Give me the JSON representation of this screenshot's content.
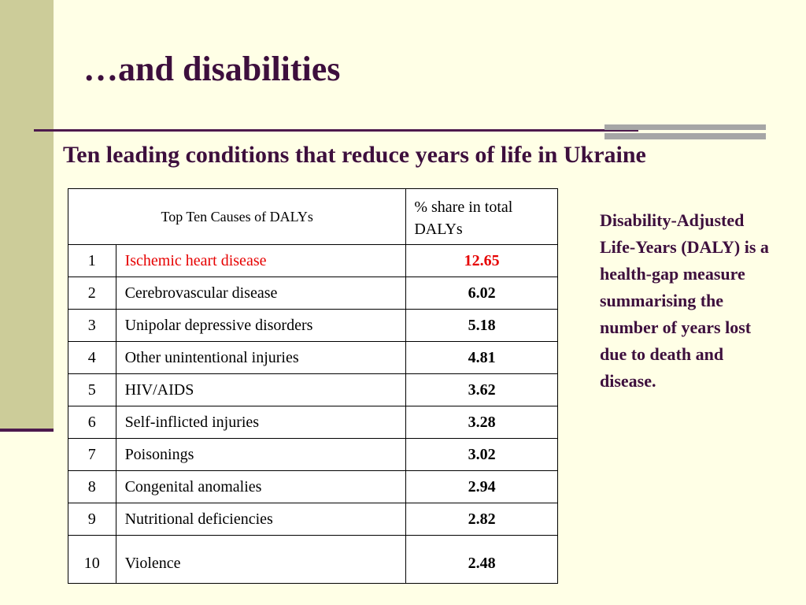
{
  "slide": {
    "title": "…and disabilities",
    "subtitle": "Ten leading conditions that reduce years of life in Ukraine",
    "side_note": "Disability-Adjusted Life-Years (DALY) is a health-gap measure summarising the number of years lost due to death and disease."
  },
  "table": {
    "header_cause": "Top Ten Causes of DALYs",
    "header_share": "% share in total DALYs",
    "rows": [
      {
        "rank": "1",
        "cause": "Ischemic heart disease",
        "share": "12.65"
      },
      {
        "rank": "2",
        "cause": "Cerebrovascular disease",
        "share": "6.02"
      },
      {
        "rank": "3",
        "cause": "Unipolar depressive disorders",
        "share": "5.18"
      },
      {
        "rank": "4",
        "cause": "Other unintentional injuries",
        "share": "4.81"
      },
      {
        "rank": "5",
        "cause": "HIV/AIDS",
        "share": "3.62"
      },
      {
        "rank": "6",
        "cause": "Self-inflicted injuries",
        "share": "3.28"
      },
      {
        "rank": "7",
        "cause": "Poisonings",
        "share": "3.02"
      },
      {
        "rank": "8",
        "cause": "Congenital anomalies",
        "share": "2.94"
      },
      {
        "rank": "9",
        "cause": "Nutritional deficiencies",
        "share": "2.82"
      },
      {
        "rank": "10",
        "cause": "Violence",
        "share": "2.48"
      }
    ]
  },
  "colors": {
    "background": "#ffffe6",
    "title": "#3d0f3d",
    "highlight": "#e60000",
    "left_bar": "#cccc99",
    "accent_gray": "#a6a6a6"
  }
}
